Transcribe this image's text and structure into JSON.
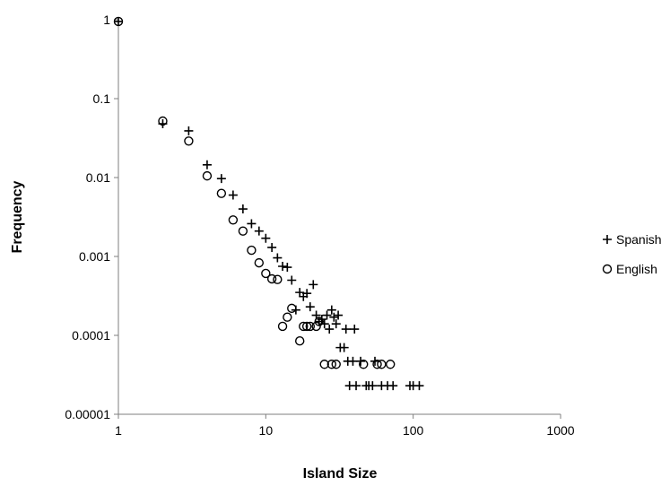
{
  "chart_data": {
    "type": "scatter",
    "xlabel": "Island Size",
    "ylabel": "Frequency",
    "x_scale": "log",
    "y_scale": "log",
    "xlim": [
      1,
      1000
    ],
    "ylim": [
      1e-05,
      1
    ],
    "x_ticks": [
      "1",
      "10",
      "100",
      "1000"
    ],
    "y_ticks": [
      "1",
      "0.1",
      "0.01",
      "0.001",
      "0.0001",
      "0.00001"
    ],
    "grid": false,
    "legend": "right",
    "series": [
      {
        "name": "Spanish",
        "marker": "plus",
        "points": [
          [
            1,
            0.95
          ],
          [
            2,
            0.048
          ],
          [
            3,
            0.039
          ],
          [
            4,
            0.0145
          ],
          [
            5,
            0.0097
          ],
          [
            6,
            0.006
          ],
          [
            7,
            0.004
          ],
          [
            8,
            0.0026
          ],
          [
            9,
            0.0021
          ],
          [
            10,
            0.0017
          ],
          [
            11,
            0.0013
          ],
          [
            12,
            0.00096
          ],
          [
            13,
            0.00075
          ],
          [
            14,
            0.00073
          ],
          [
            15,
            0.0005
          ],
          [
            16,
            0.00021
          ],
          [
            17,
            0.00035
          ],
          [
            18,
            0.00031
          ],
          [
            19,
            0.00034
          ],
          [
            20,
            0.00023
          ],
          [
            21,
            0.00044
          ],
          [
            22,
            0.00018
          ],
          [
            23,
            0.00015
          ],
          [
            24,
            0.00016
          ],
          [
            25,
            0.00014
          ],
          [
            26,
            0.00018
          ],
          [
            27,
            0.00012
          ],
          [
            28,
            0.00021
          ],
          [
            29,
            0.00017
          ],
          [
            30,
            0.00014
          ],
          [
            31,
            0.00018
          ],
          [
            32,
            7e-05
          ],
          [
            34,
            7e-05
          ],
          [
            35,
            0.00012
          ],
          [
            36,
            4.7e-05
          ],
          [
            37,
            2.3e-05
          ],
          [
            39,
            4.7e-05
          ],
          [
            40,
            0.00012
          ],
          [
            41,
            2.3e-05
          ],
          [
            44,
            4.7e-05
          ],
          [
            48,
            2.3e-05
          ],
          [
            50,
            2.3e-05
          ],
          [
            53,
            2.3e-05
          ],
          [
            55,
            4.7e-05
          ],
          [
            61,
            2.3e-05
          ],
          [
            67,
            2.3e-05
          ],
          [
            73,
            2.3e-05
          ],
          [
            95,
            2.3e-05
          ],
          [
            100,
            2.3e-05
          ],
          [
            110,
            2.3e-05
          ]
        ]
      },
      {
        "name": "English",
        "marker": "circle",
        "points": [
          [
            1,
            0.95
          ],
          [
            2,
            0.052
          ],
          [
            3,
            0.029
          ],
          [
            4,
            0.0105
          ],
          [
            5,
            0.0063
          ],
          [
            6,
            0.0029
          ],
          [
            7,
            0.0021
          ],
          [
            8,
            0.0012
          ],
          [
            9,
            0.00083
          ],
          [
            10,
            0.00061
          ],
          [
            11,
            0.00052
          ],
          [
            12,
            0.00051
          ],
          [
            13,
            0.00013
          ],
          [
            14,
            0.00017
          ],
          [
            15,
            0.00022
          ],
          [
            17,
            8.5e-05
          ],
          [
            18,
            0.00013
          ],
          [
            19,
            0.00013
          ],
          [
            20,
            0.00013
          ],
          [
            22,
            0.00013
          ],
          [
            23,
            0.00015
          ],
          [
            25,
            4.3e-05
          ],
          [
            28,
            4.3e-05
          ],
          [
            30,
            4.3e-05
          ],
          [
            46,
            4.3e-05
          ],
          [
            57,
            4.3e-05
          ],
          [
            61,
            4.3e-05
          ],
          [
            70,
            4.3e-05
          ]
        ]
      }
    ]
  }
}
